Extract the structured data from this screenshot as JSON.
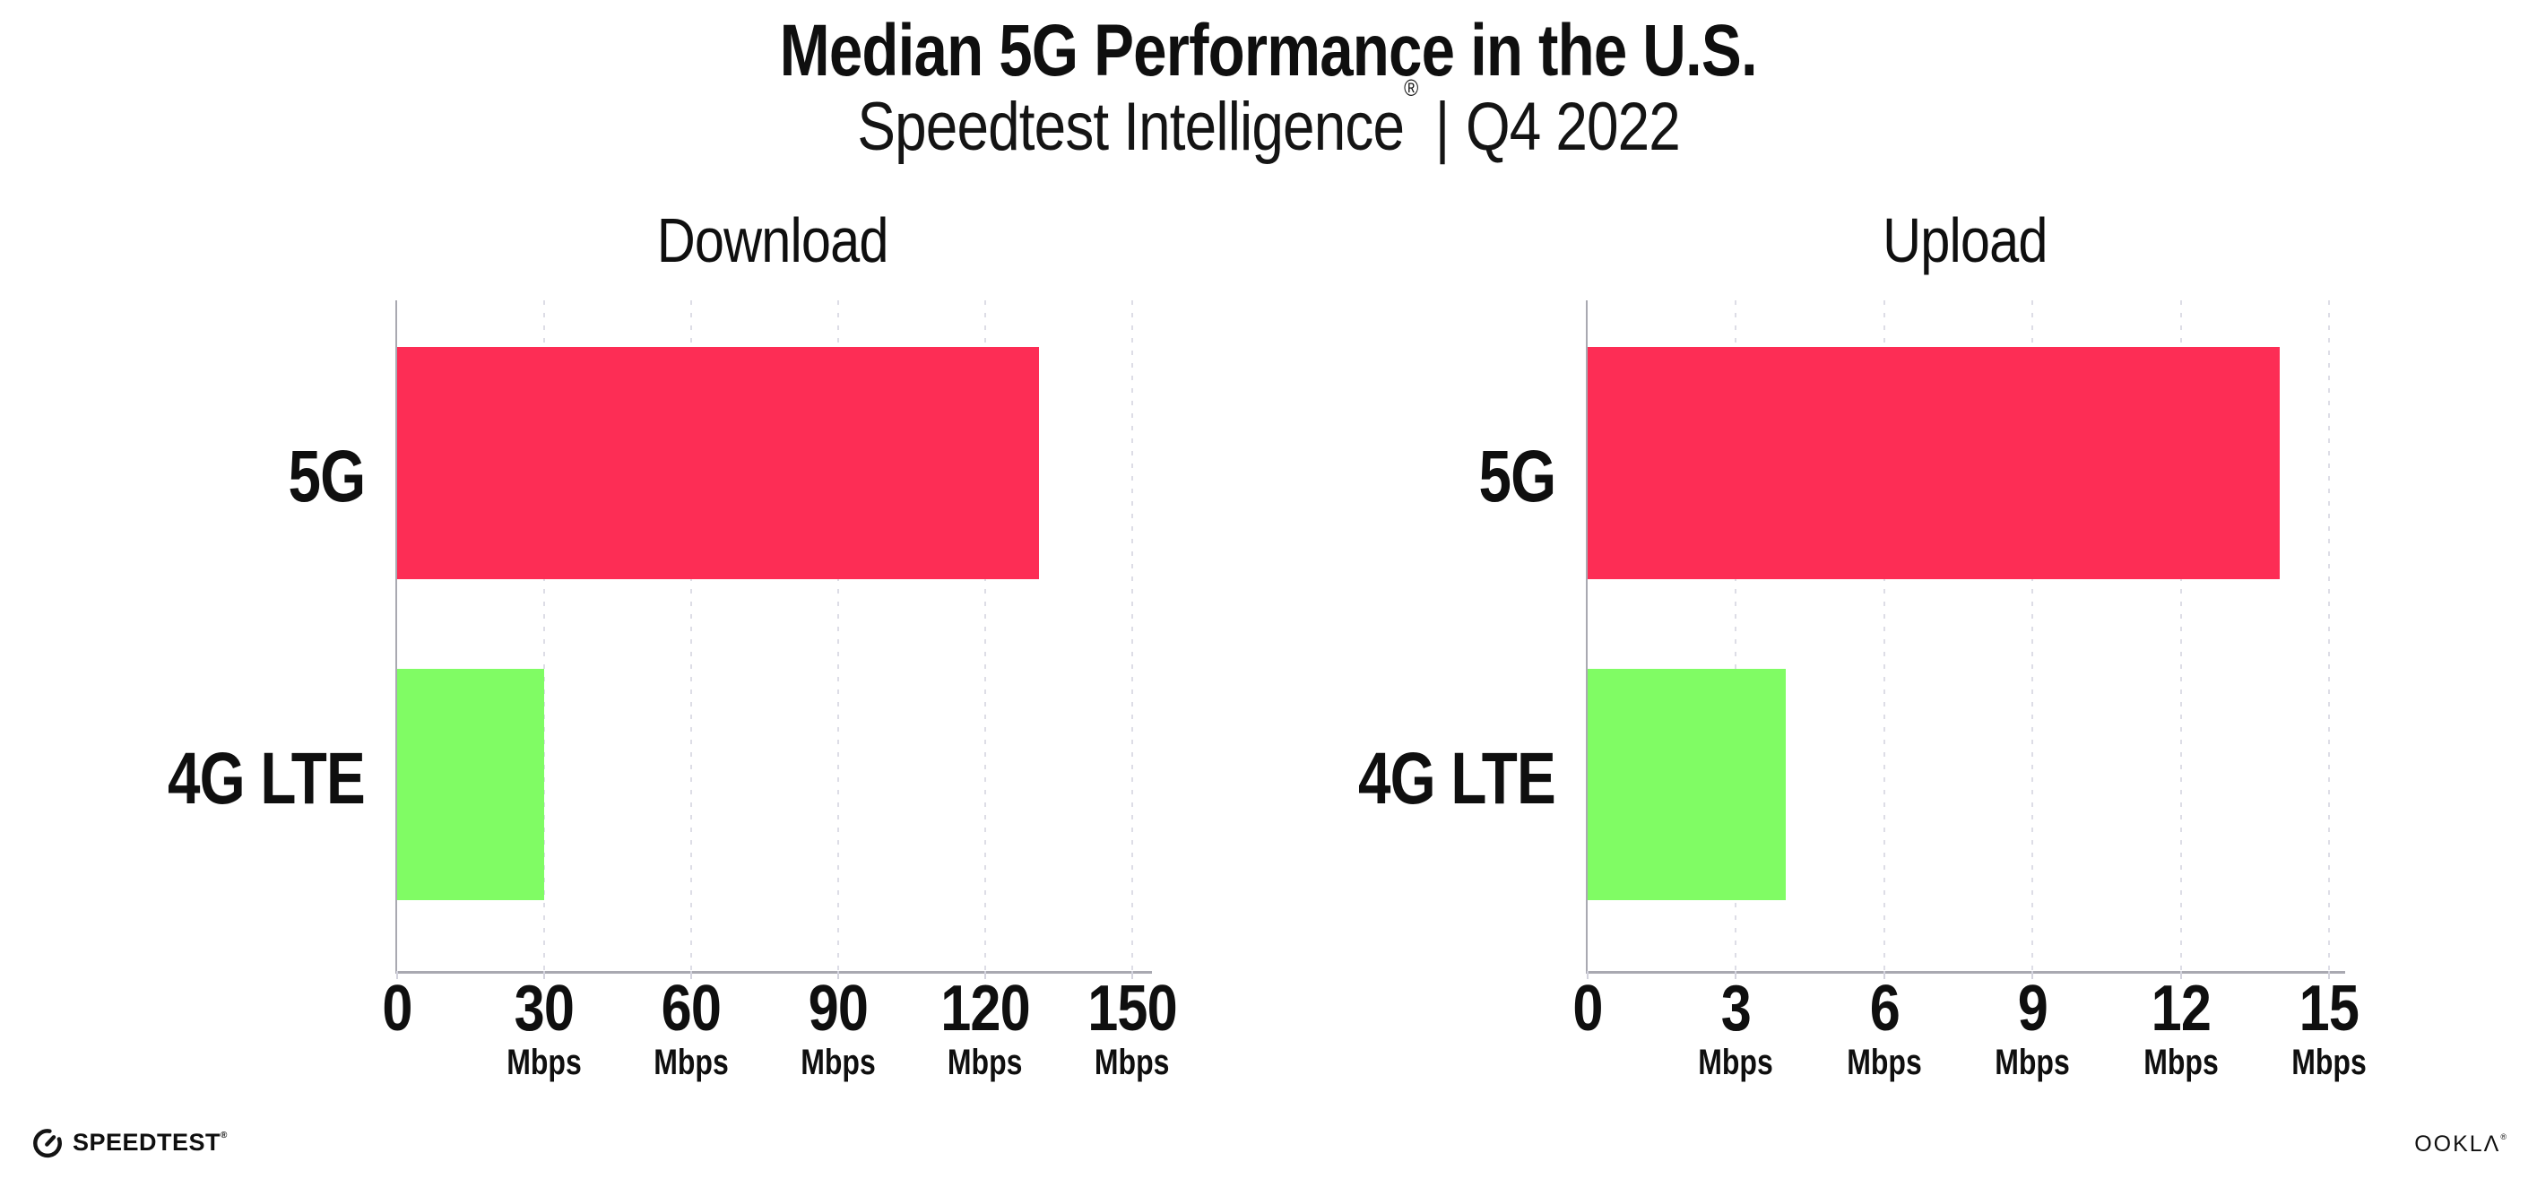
{
  "header": {
    "title": "Median 5G Performance in the U.S.",
    "subtitle_brand": "Speedtest Intelligence",
    "subtitle_registered": "®",
    "subtitle_separator": "|",
    "subtitle_period": "Q4 2022"
  },
  "footer": {
    "speedtest_wordmark": "SPEEDTEST",
    "speedtest_trademark": "®",
    "ookla_wordmark": "OOKLΛ",
    "ookla_trademark": "®"
  },
  "colors": {
    "bar_5g": "#FD2D55",
    "bar_4g_lte": "#80FC64",
    "axis_line": "#A9A9B1",
    "gridline": "#DDDDE6",
    "tick_mark": "#D3D3DD",
    "text": "#0F0F0F",
    "background": "#FFFFFF"
  },
  "chart_data": [
    {
      "type": "bar",
      "orientation": "horizontal",
      "title": "Download",
      "categories": [
        "5G",
        "4G LTE"
      ],
      "values": [
        131,
        30
      ],
      "unit": "Mbps",
      "xlim": [
        0,
        153.3
      ],
      "ticks": [
        0,
        30,
        60,
        90,
        120,
        150
      ],
      "tick_unit_label": "Mbps",
      "unit_shown_on_zero_tick": false,
      "grid": "dotted-vertical",
      "legend": "none",
      "bar_colors": [
        "#FD2D55",
        "#80FC64"
      ]
    },
    {
      "type": "bar",
      "orientation": "horizontal",
      "title": "Upload",
      "categories": [
        "5G",
        "4G LTE"
      ],
      "values": [
        14,
        4
      ],
      "unit": "Mbps",
      "xlim": [
        0,
        15.25
      ],
      "ticks": [
        0,
        3,
        6,
        9,
        12,
        15
      ],
      "tick_unit_label": "Mbps",
      "unit_shown_on_zero_tick": false,
      "grid": "dotted-vertical",
      "legend": "none",
      "bar_colors": [
        "#FD2D55",
        "#80FC64"
      ]
    }
  ]
}
